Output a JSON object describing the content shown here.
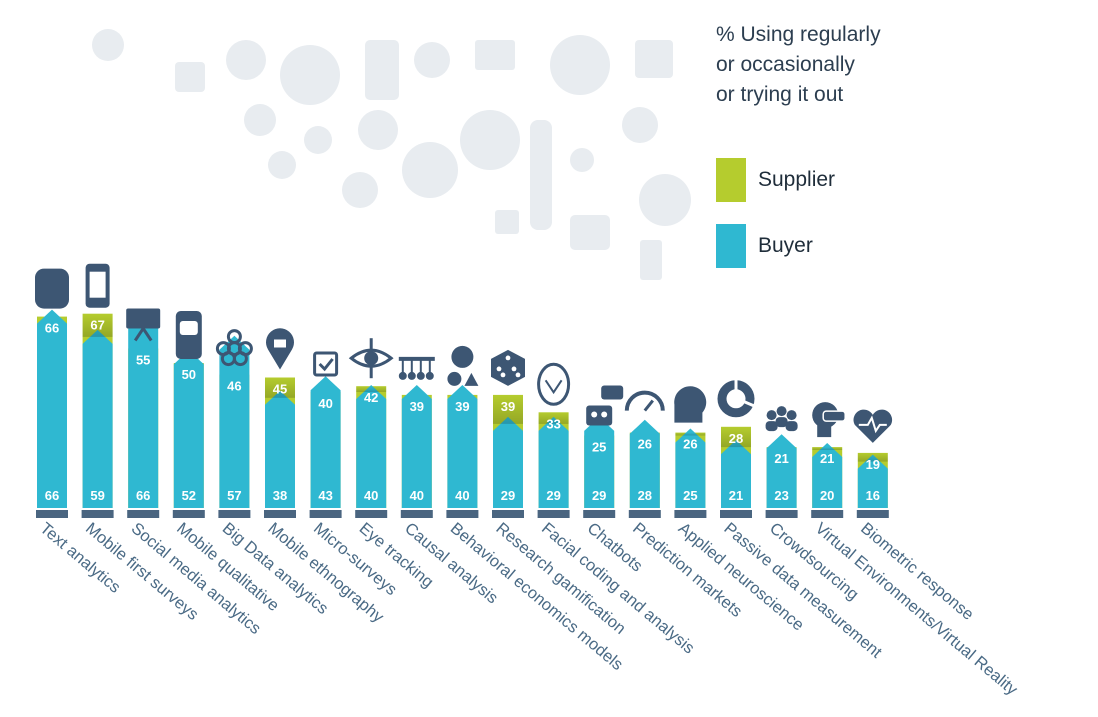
{
  "colors": {
    "supplier": "#b5cc2e",
    "buyer": "#2fb8d1",
    "base": "#4a6580",
    "label": "#4a6a85",
    "icon": "#3d5673",
    "ghost": "#e8ecf0"
  },
  "legend": {
    "title": "% Using regularly\nor occasionally\nor trying it out",
    "supplier_label": "Supplier",
    "buyer_label": "Buyer"
  },
  "chart_data": {
    "type": "bar",
    "title": "% Using regularly or occasionally or trying it out",
    "categories": [
      "Text analytics",
      "Mobile first surveys",
      "Social media analytics",
      "Mobile qualitative",
      "Big Data analytics",
      "Mobile ethnography",
      "Micro-surveys",
      "Eye tracking",
      "Causal analysis",
      "Behavioral economics models",
      "Research gamification",
      "Facial coding and analysis",
      "Chatbots",
      "Prediction markets",
      "Applied neuroscience",
      "Passive data measurement",
      "Crowdsourcing",
      "Virtual Environments/Virtual Reality",
      "Biometric response"
    ],
    "series": [
      {
        "name": "Supplier",
        "values": [
          66,
          67,
          55,
          50,
          46,
          45,
          40,
          42,
          39,
          39,
          39,
          33,
          25,
          26,
          26,
          28,
          21,
          21,
          19
        ]
      },
      {
        "name": "Buyer",
        "values": [
          66,
          59,
          66,
          52,
          57,
          38,
          43,
          40,
          40,
          40,
          29,
          29,
          29,
          28,
          25,
          21,
          23,
          20,
          16
        ]
      }
    ],
    "icons": [
      "text-bubble-icon",
      "smartphone-settings-icon",
      "presentation-twitter-icon",
      "chat-phone-icon",
      "network-nodes-icon",
      "location-coffee-icon",
      "checkbox-icon",
      "eye-icon",
      "pendulum-icon",
      "apple-shapes-icon",
      "dice-icon",
      "face-mesh-icon",
      "robot-chat-icon",
      "gauge-icon",
      "brain-network-icon",
      "donut-chart-icon",
      "people-group-icon",
      "vr-headset-icon",
      "heart-pulse-icon"
    ],
    "xlabel": "",
    "ylabel": "",
    "ylim": [
      0,
      100
    ]
  }
}
